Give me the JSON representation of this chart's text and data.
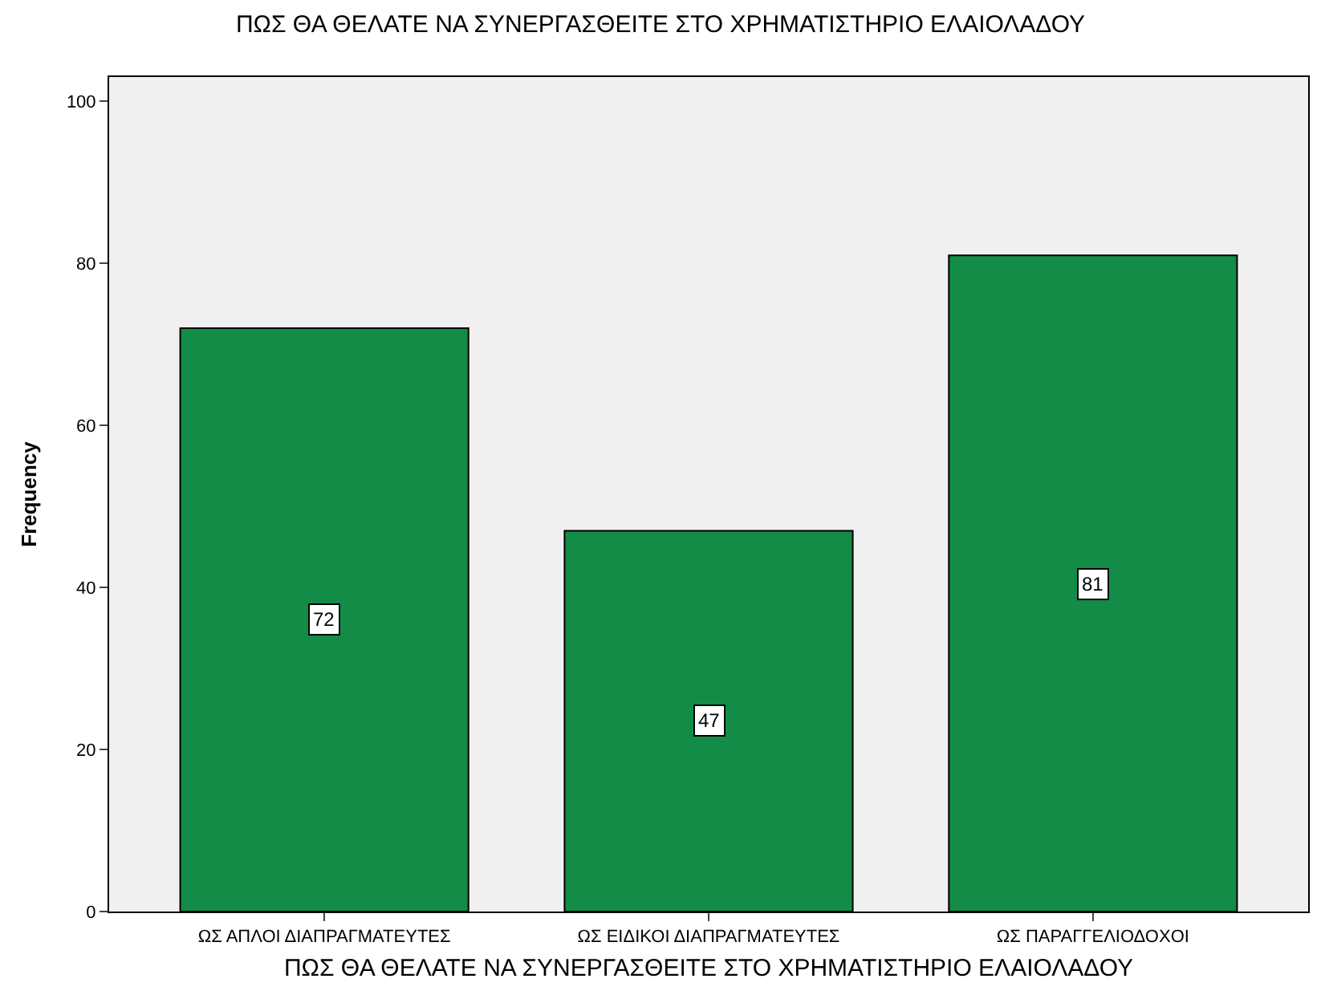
{
  "chart_data": {
    "type": "bar",
    "title": "ΠΩΣ ΘΑ ΘΕΛΑΤΕ ΝΑ ΣΥΝΕΡΓΑΣΘΕΙΤΕ ΣΤΟ ΧΡΗΜΑΤΙΣΤΗΡΙΟ ΕΛΑΙΟΛΑΔΟΥ",
    "xlabel": "ΠΩΣ ΘΑ ΘΕΛΑΤΕ ΝΑ ΣΥΝΕΡΓΑΣΘΕΙΤΕ ΣΤΟ ΧΡΗΜΑΤΙΣΤΗΡΙΟ ΕΛΑΙΟΛΑΔΟΥ",
    "ylabel": "Frequency",
    "categories": [
      "ΩΣ ΑΠΛΟΙ ΔΙΑΠΡΑΓΜΑΤΕΥΤΕΣ",
      "ΩΣ ΕΙΔΙΚΟΙ ΔΙΑΠΡΑΓΜΑΤΕΥΤΕΣ",
      "ΩΣ ΠΑΡΑΓΓΕΛΙΟΔΟΧΟΙ"
    ],
    "values": [
      72,
      47,
      81
    ],
    "color": "#128c47",
    "ylim": [
      0,
      103
    ],
    "yticks": [
      0,
      20,
      40,
      60,
      80,
      100
    ],
    "grid": false,
    "legend": false,
    "data_labels": true
  }
}
